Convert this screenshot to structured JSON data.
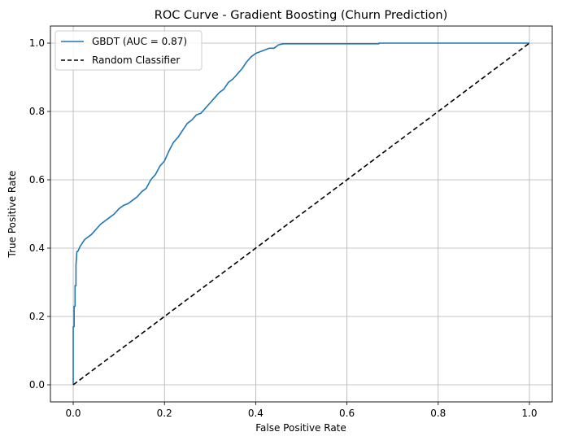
{
  "chart_data": {
    "type": "line",
    "title": "ROC Curve - Gradient Boosting (Churn Prediction)",
    "xlabel": "False Positive Rate",
    "ylabel": "True Positive Rate",
    "xlim": [
      -0.05,
      1.05
    ],
    "ylim": [
      -0.05,
      1.05
    ],
    "xticks": [
      0.0,
      0.2,
      0.4,
      0.6,
      0.8,
      1.0
    ],
    "xtick_labels": [
      "0.0",
      "0.2",
      "0.4",
      "0.6",
      "0.8",
      "1.0"
    ],
    "yticks": [
      0.0,
      0.2,
      0.4,
      0.6,
      0.8,
      1.0
    ],
    "ytick_labels": [
      "0.0",
      "0.2",
      "0.4",
      "0.6",
      "0.8",
      "1.0"
    ],
    "grid": true,
    "legend_position": "top-left",
    "series": [
      {
        "name": "GBDT (AUC = 0.87)",
        "color": "#1f77b4",
        "style": "solid",
        "x": [
          0.0,
          0.0,
          0.002,
          0.002,
          0.004,
          0.004,
          0.006,
          0.006,
          0.008,
          0.01,
          0.015,
          0.02,
          0.025,
          0.03,
          0.04,
          0.05,
          0.06,
          0.07,
          0.08,
          0.09,
          0.1,
          0.11,
          0.12,
          0.13,
          0.14,
          0.15,
          0.16,
          0.17,
          0.18,
          0.19,
          0.2,
          0.21,
          0.22,
          0.23,
          0.24,
          0.25,
          0.26,
          0.27,
          0.28,
          0.29,
          0.3,
          0.31,
          0.32,
          0.33,
          0.34,
          0.35,
          0.36,
          0.37,
          0.38,
          0.39,
          0.4,
          0.41,
          0.42,
          0.43,
          0.44,
          0.45,
          0.46,
          0.55,
          0.67,
          0.67,
          0.8,
          1.0
        ],
        "y": [
          0.0,
          0.17,
          0.17,
          0.23,
          0.23,
          0.29,
          0.29,
          0.35,
          0.39,
          0.39,
          0.405,
          0.415,
          0.425,
          0.43,
          0.44,
          0.455,
          0.47,
          0.48,
          0.49,
          0.5,
          0.515,
          0.525,
          0.53,
          0.54,
          0.55,
          0.565,
          0.575,
          0.6,
          0.615,
          0.64,
          0.655,
          0.685,
          0.71,
          0.725,
          0.745,
          0.765,
          0.775,
          0.79,
          0.795,
          0.81,
          0.825,
          0.84,
          0.855,
          0.865,
          0.885,
          0.895,
          0.91,
          0.925,
          0.945,
          0.96,
          0.97,
          0.975,
          0.98,
          0.985,
          0.985,
          0.995,
          0.998,
          0.998,
          0.998,
          1.0,
          1.0,
          1.0
        ]
      },
      {
        "name": "Random Classifier",
        "color": "#000000",
        "style": "dashed",
        "x": [
          0.0,
          1.0
        ],
        "y": [
          0.0,
          1.0
        ]
      }
    ]
  }
}
